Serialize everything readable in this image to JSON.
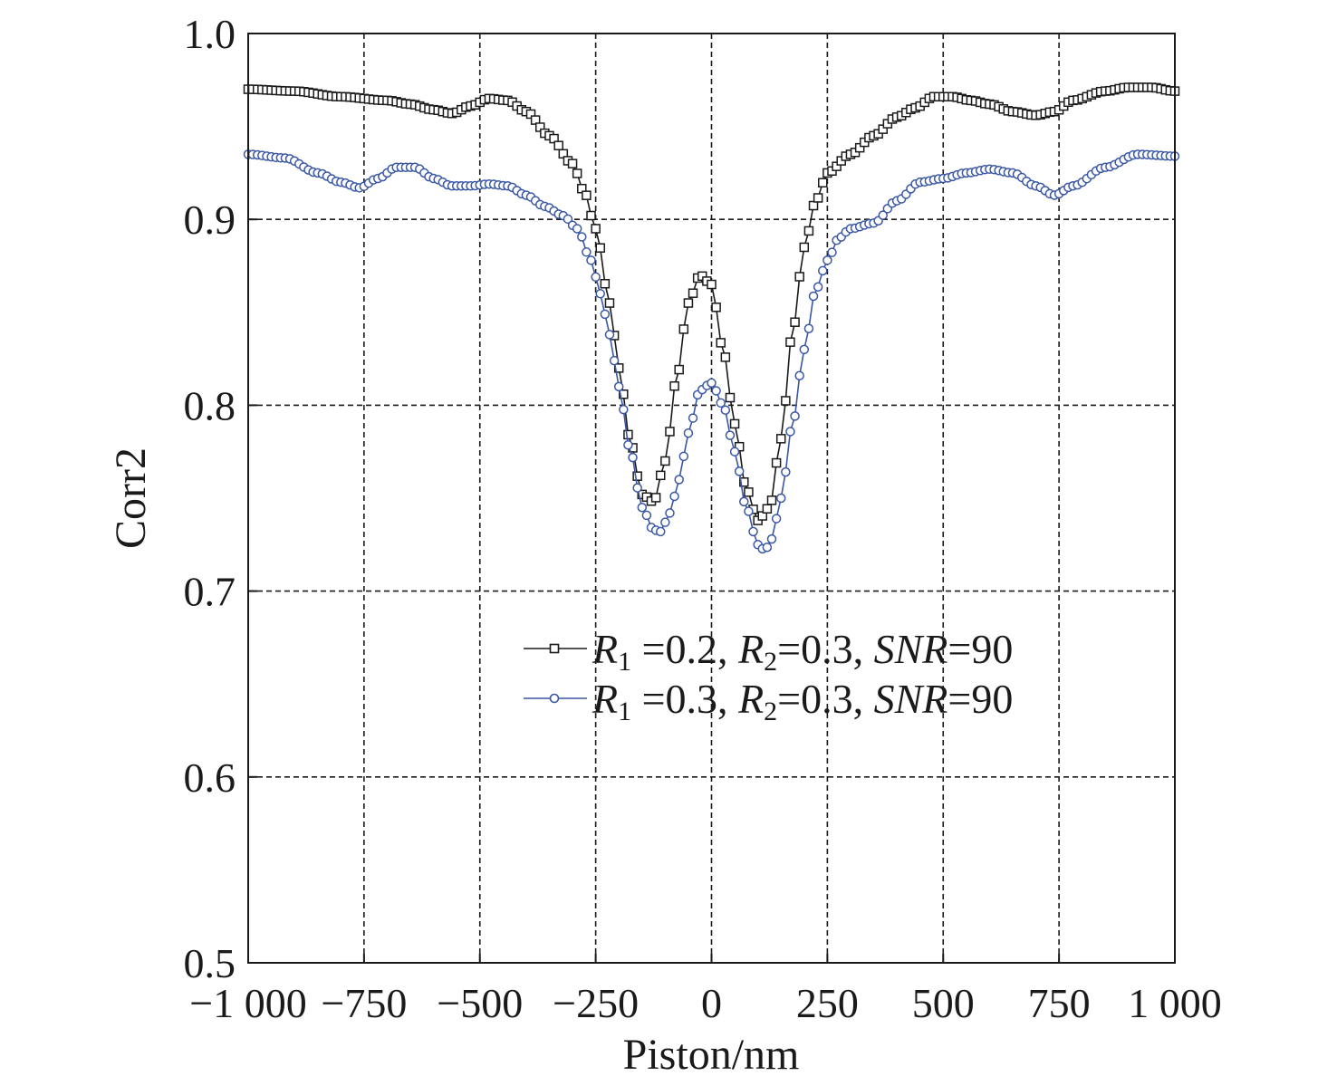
{
  "chart_data": {
    "type": "line",
    "title": "",
    "xlabel": "Piston/nm",
    "ylabel": "Corr2",
    "xlim": [
      -1000,
      1000
    ],
    "ylim": [
      0.5,
      1.0
    ],
    "xticks": [
      -1000,
      -750,
      -500,
      -250,
      0,
      250,
      500,
      750,
      1000
    ],
    "xtick_labels": [
      "−1 000",
      "−750",
      "−500",
      "−250",
      "0",
      "250",
      "500",
      "750",
      "1 000"
    ],
    "yticks": [
      0.5,
      0.6,
      0.7,
      0.8,
      0.9,
      1.0
    ],
    "ytick_labels": [
      "0.5",
      "0.6",
      "0.7",
      "0.8",
      "0.9",
      "1.0"
    ],
    "grid": true,
    "legend_position": "lower-center",
    "series": [
      {
        "name": "R1 =0.2, R2=0.3, SNR=90",
        "legend": {
          "r1_var": "R",
          "r1_sub": "1",
          "r1_val": " =0.2, ",
          "r2_var": "R",
          "r2_sub": "2",
          "r2_val": "=0.3, ",
          "snr_var": "SNR",
          "snr_val": "=90"
        },
        "marker": "square",
        "color": "#1a1a1a",
        "x": [
          -1000,
          -900,
          -800,
          -700,
          -650,
          -600,
          -560,
          -520,
          -480,
          -440,
          -400,
          -350,
          -300,
          -275,
          -250,
          -220,
          -200,
          -175,
          -150,
          -125,
          -100,
          -75,
          -50,
          -25,
          0,
          25,
          50,
          75,
          100,
          125,
          150,
          175,
          200,
          225,
          250,
          300,
          350,
          400,
          440,
          480,
          520,
          560,
          600,
          650,
          700,
          740,
          780,
          850,
          900,
          950,
          1000
        ],
        "y": [
          0.97,
          0.969,
          0.966,
          0.964,
          0.962,
          0.959,
          0.957,
          0.961,
          0.965,
          0.964,
          0.958,
          0.945,
          0.93,
          0.915,
          0.895,
          0.855,
          0.82,
          0.78,
          0.752,
          0.748,
          0.77,
          0.815,
          0.855,
          0.87,
          0.865,
          0.83,
          0.79,
          0.755,
          0.738,
          0.745,
          0.782,
          0.84,
          0.885,
          0.91,
          0.925,
          0.935,
          0.945,
          0.955,
          0.96,
          0.966,
          0.966,
          0.964,
          0.962,
          0.958,
          0.956,
          0.958,
          0.964,
          0.969,
          0.971,
          0.971,
          0.969
        ]
      },
      {
        "name": "R1 =0.3, R2=0.3, SNR=90",
        "legend": {
          "r1_var": "R",
          "r1_sub": "1",
          "r1_val": " =0.3, ",
          "r2_var": "R",
          "r2_sub": "2",
          "r2_val": "=0.3, ",
          "snr_var": "SNR",
          "snr_val": "=90"
        },
        "marker": "circle",
        "color": "#3a57a6",
        "x": [
          -1000,
          -920,
          -850,
          -800,
          -760,
          -720,
          -680,
          -640,
          -600,
          -560,
          -520,
          -480,
          -440,
          -400,
          -360,
          -320,
          -290,
          -260,
          -240,
          -220,
          -200,
          -175,
          -150,
          -125,
          -110,
          -90,
          -70,
          -50,
          -25,
          0,
          25,
          50,
          75,
          100,
          115,
          130,
          150,
          175,
          200,
          225,
          250,
          275,
          300,
          350,
          400,
          450,
          500,
          550,
          600,
          650,
          700,
          740,
          780,
          850,
          920,
          1000
        ],
        "y": [
          0.935,
          0.933,
          0.925,
          0.92,
          0.917,
          0.922,
          0.928,
          0.928,
          0.922,
          0.918,
          0.918,
          0.919,
          0.918,
          0.913,
          0.907,
          0.902,
          0.895,
          0.878,
          0.86,
          0.838,
          0.81,
          0.775,
          0.745,
          0.733,
          0.732,
          0.742,
          0.76,
          0.785,
          0.808,
          0.812,
          0.8,
          0.775,
          0.745,
          0.725,
          0.722,
          0.728,
          0.75,
          0.79,
          0.83,
          0.862,
          0.878,
          0.89,
          0.895,
          0.898,
          0.91,
          0.92,
          0.922,
          0.925,
          0.927,
          0.925,
          0.918,
          0.913,
          0.918,
          0.928,
          0.935,
          0.934
        ]
      }
    ]
  }
}
